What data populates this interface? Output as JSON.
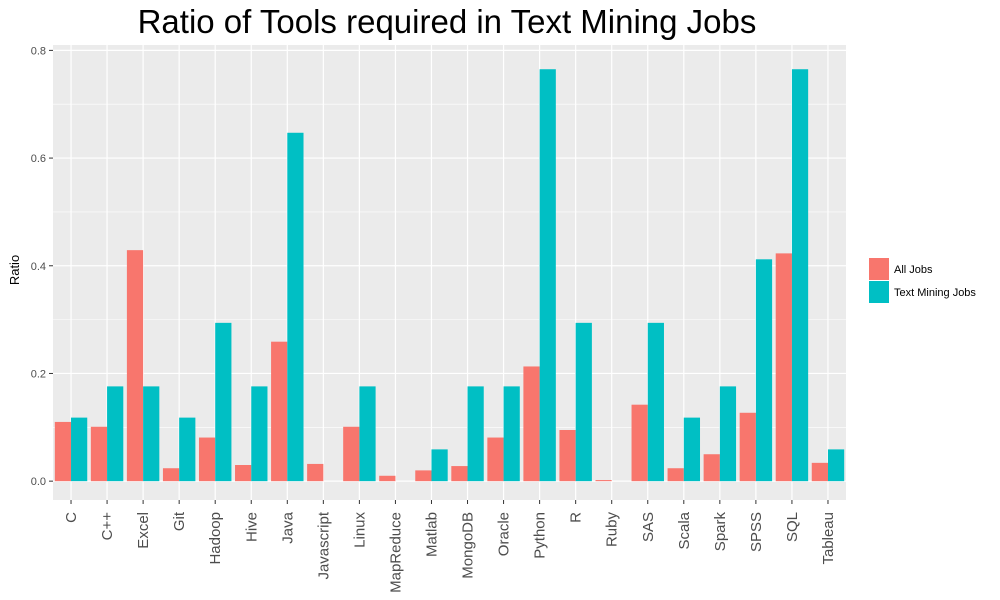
{
  "chart_data": {
    "type": "bar",
    "title": "Ratio of Tools required in Text Mining Jobs",
    "xlabel": "",
    "ylabel": "Ratio",
    "ylim": [
      -0.035,
      0.81
    ],
    "yticks": [
      0.0,
      0.2,
      0.4,
      0.6,
      0.8
    ],
    "ytick_labels": [
      "0.0",
      "0.2",
      "0.4",
      "0.6",
      "0.8"
    ],
    "grid": true,
    "legend_position": "right",
    "categories": [
      "C",
      "C++",
      "Excel",
      "Git",
      "Hadoop",
      "Hive",
      "Java",
      "Javascript",
      "Linux",
      "MapReduce",
      "Matlab",
      "MongoDB",
      "Oracle",
      "Python",
      "R",
      "Ruby",
      "SAS",
      "Scala",
      "Spark",
      "SPSS",
      "SQL",
      "Tableau"
    ],
    "series": [
      {
        "name": "All Jobs",
        "color": "#F8766D",
        "values": [
          0.11,
          0.101,
          0.429,
          0.024,
          0.081,
          0.03,
          0.259,
          0.032,
          0.101,
          0.01,
          0.02,
          0.028,
          0.081,
          0.213,
          0.095,
          0.002,
          0.142,
          0.024,
          0.05,
          0.127,
          0.423,
          0.034
        ]
      },
      {
        "name": "Text Mining Jobs",
        "color": "#00BFC4",
        "values": [
          0.118,
          0.176,
          0.176,
          0.118,
          0.294,
          0.176,
          0.647,
          0.0,
          0.176,
          0.0,
          0.059,
          0.176,
          0.176,
          0.765,
          0.294,
          0.0,
          0.294,
          0.118,
          0.176,
          0.412,
          0.765,
          0.059
        ]
      }
    ],
    "panel_color": "#EBEBEB",
    "grid_color": "#FFFFFF"
  }
}
